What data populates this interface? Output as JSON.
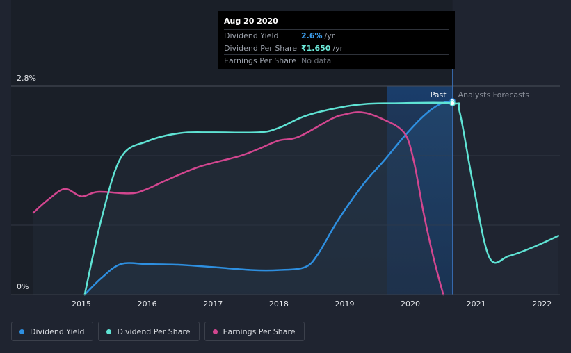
{
  "tooltip": {
    "date": "Aug 20 2020",
    "rows": [
      {
        "name": "Dividend Yield",
        "value": "2.6%",
        "unit": "/yr",
        "color": "#3b9be8"
      },
      {
        "name": "Dividend Per Share",
        "value": "₹1.650",
        "unit": "/yr",
        "color": "#6ce9d9"
      },
      {
        "name": "Earnings Per Share",
        "value": "No data",
        "unit": ""
      }
    ]
  },
  "legend": [
    {
      "label": "Dividend Yield",
      "color": "#2e8fe0"
    },
    {
      "label": "Dividend Per Share",
      "color": "#5fe3d4"
    },
    {
      "label": "Earnings Per Share",
      "color": "#d2468f"
    }
  ],
  "chart_data": {
    "type": "line",
    "y_top_label": "2.8%",
    "y_bottom_label": "0%",
    "ylim": [
      0,
      2.8
    ],
    "xlim": [
      2014.27,
      2022.25
    ],
    "x_ticks": [
      "2015",
      "2016",
      "2017",
      "2018",
      "2019",
      "2020",
      "2021",
      "2022"
    ],
    "past_label": "Past",
    "forecast_label": "Analysts Forecasts",
    "past_end": 2020.64,
    "highlight_start": 2019.64,
    "series": [
      {
        "name": "Dividend Yield",
        "color": "#2e8fe0",
        "fill": true,
        "points": [
          [
            2015.05,
            0.0
          ],
          [
            2015.3,
            0.22
          ],
          [
            2015.6,
            0.41
          ],
          [
            2016.0,
            0.41
          ],
          [
            2016.5,
            0.4
          ],
          [
            2017.0,
            0.37
          ],
          [
            2017.6,
            0.33
          ],
          [
            2018.0,
            0.33
          ],
          [
            2018.4,
            0.37
          ],
          [
            2018.6,
            0.55
          ],
          [
            2018.9,
            1.0
          ],
          [
            2019.3,
            1.5
          ],
          [
            2019.6,
            1.8
          ],
          [
            2019.9,
            2.12
          ],
          [
            2020.2,
            2.4
          ],
          [
            2020.45,
            2.56
          ],
          [
            2020.64,
            2.6
          ]
        ]
      },
      {
        "name": "Dividend Per Share",
        "color": "#5fe3d4",
        "fill": false,
        "points": [
          [
            2015.05,
            0.0
          ],
          [
            2015.3,
            1.0
          ],
          [
            2015.6,
            1.84
          ],
          [
            2016.0,
            2.06
          ],
          [
            2016.5,
            2.17
          ],
          [
            2017.0,
            2.18
          ],
          [
            2017.7,
            2.18
          ],
          [
            2018.0,
            2.24
          ],
          [
            2018.4,
            2.4
          ],
          [
            2018.9,
            2.51
          ],
          [
            2019.3,
            2.56
          ],
          [
            2019.7,
            2.57
          ],
          [
            2020.64,
            2.57
          ],
          [
            2020.75,
            2.45
          ],
          [
            2020.95,
            1.5
          ],
          [
            2021.2,
            0.5
          ],
          [
            2021.5,
            0.52
          ],
          [
            2021.9,
            0.65
          ],
          [
            2022.25,
            0.79
          ]
        ]
      },
      {
        "name": "Earnings Per Share",
        "color": "#d2468f",
        "fill": false,
        "points": [
          [
            2014.27,
            1.1
          ],
          [
            2014.5,
            1.28
          ],
          [
            2014.75,
            1.42
          ],
          [
            2015.0,
            1.32
          ],
          [
            2015.25,
            1.38
          ],
          [
            2015.75,
            1.36
          ],
          [
            2016.0,
            1.42
          ],
          [
            2016.3,
            1.54
          ],
          [
            2016.8,
            1.72
          ],
          [
            2017.4,
            1.86
          ],
          [
            2017.7,
            1.96
          ],
          [
            2018.0,
            2.07
          ],
          [
            2018.3,
            2.12
          ],
          [
            2018.8,
            2.36
          ],
          [
            2019.0,
            2.42
          ],
          [
            2019.25,
            2.45
          ],
          [
            2019.55,
            2.37
          ],
          [
            2019.9,
            2.18
          ],
          [
            2020.05,
            1.8
          ],
          [
            2020.2,
            1.1
          ],
          [
            2020.35,
            0.5
          ],
          [
            2020.5,
            0.0
          ]
        ]
      }
    ],
    "markers": [
      {
        "series": "Dividend Yield",
        "x": 2020.64,
        "y": 2.6
      },
      {
        "series": "Dividend Per Share",
        "x": 2020.64,
        "y": 2.57
      }
    ]
  }
}
